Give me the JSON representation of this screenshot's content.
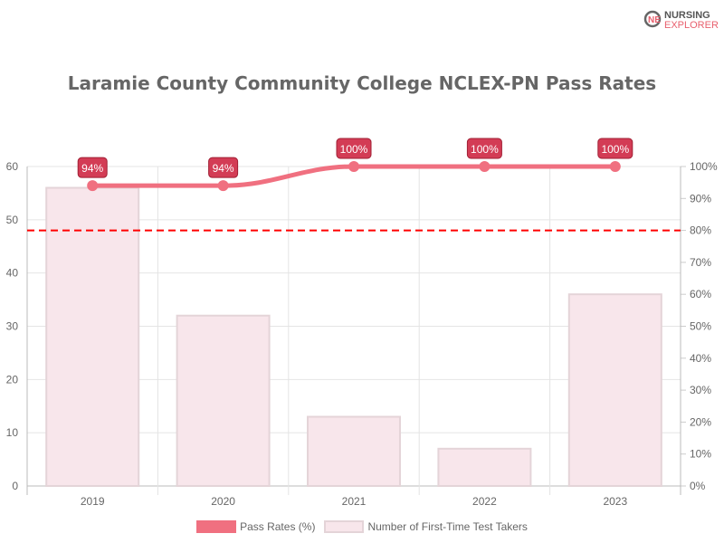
{
  "logo": {
    "line1": "NURSING",
    "line2": "EXPLORER"
  },
  "chart_data": {
    "type": "bar+line",
    "title": "Laramie County Community College NCLEX-PN Pass Rates",
    "categories": [
      "2019",
      "2020",
      "2021",
      "2022",
      "2023"
    ],
    "series": [
      {
        "name": "Pass Rates (%)",
        "type": "line",
        "axis": "right",
        "values": [
          94,
          94,
          100,
          100,
          100
        ],
        "labels": [
          "94%",
          "94%",
          "100%",
          "100%",
          "100%"
        ],
        "color": "#f07080"
      },
      {
        "name": "Number of First-Time Test Takers",
        "type": "bar",
        "axis": "left",
        "values": [
          56,
          32,
          13,
          7,
          36
        ],
        "color": "#f8e6eb"
      }
    ],
    "y_left": {
      "range": [
        0,
        60
      ],
      "ticks": [
        "0",
        "10",
        "20",
        "30",
        "40",
        "50",
        "60"
      ]
    },
    "y_right": {
      "range": [
        0,
        100
      ],
      "ticks": [
        "0%",
        "10%",
        "20%",
        "30%",
        "40%",
        "50%",
        "60%",
        "70%",
        "80%",
        "90%",
        "100%"
      ]
    },
    "reference_line": {
      "value": 80,
      "axis": "right",
      "style": "dashed",
      "color": "#ff0000"
    },
    "grid": true,
    "legend": "bottom"
  }
}
